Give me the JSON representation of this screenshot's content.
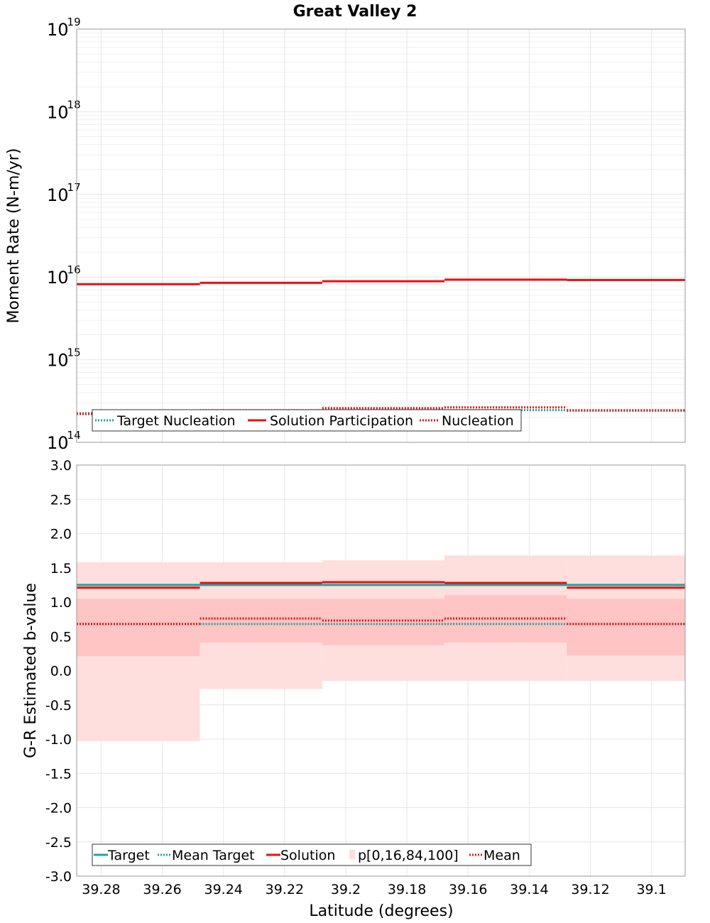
{
  "title": "Great Valley 2",
  "xlabel": "Latitude (degrees)",
  "colors": {
    "target": "#1aa6a0",
    "mean_target": "#1aa6a0",
    "solution": "#e81010",
    "mean": "#e81010",
    "band_outer": "#ffdede",
    "band_inner": "#ffc4c4",
    "grid": "#e6e6e6"
  },
  "chart_data": [
    {
      "type": "line",
      "ylabel": "Moment Rate (N-m/yr)",
      "yscale": "log",
      "ylim": [
        100000000000000.0,
        1e+19
      ],
      "xlim": [
        39.288,
        39.089
      ],
      "x_tick_values": [
        39.28,
        39.26,
        39.24,
        39.22,
        39.2,
        39.18,
        39.16,
        39.14,
        39.12,
        39.1
      ],
      "x_tick_labels_shown": false,
      "y_ticks": [
        {
          "base": "10",
          "exp": "14",
          "value": 100000000000000.0
        },
        {
          "base": "10",
          "exp": "15",
          "value": 1000000000000000.0
        },
        {
          "base": "10",
          "exp": "16",
          "value": 1e+16
        },
        {
          "base": "10",
          "exp": "17",
          "value": 1e+17
        },
        {
          "base": "10",
          "exp": "18",
          "value": 1e+18
        },
        {
          "base": "10",
          "exp": "19",
          "value": 1e+19
        }
      ],
      "bin_edges": [
        39.288,
        39.2477,
        39.2077,
        39.1677,
        39.1277,
        39.089
      ],
      "series": [
        {
          "name": "Target Nucleation",
          "style": "dotted",
          "color_key": "mean_target",
          "values": [
            230000000000000.0,
            245000000000000.0,
            255000000000000.0,
            250000000000000.0,
            245000000000000.0
          ]
        },
        {
          "name": "Solution Participation",
          "style": "solid",
          "color_key": "solution",
          "values": [
            8200000000000000.0,
            8500000000000000.0,
            8900000000000000.0,
            9300000000000000.0,
            9200000000000000.0
          ]
        },
        {
          "name": "Nucleation",
          "style": "dotted",
          "color_key": "mean",
          "values": [
            220000000000000.0,
            245000000000000.0,
            260000000000000.0,
            265000000000000.0,
            245000000000000.0
          ]
        }
      ],
      "legend": {
        "placement": "bottom-left"
      }
    },
    {
      "type": "line",
      "ylabel": "G-R Estimated b-value",
      "ylim": [
        -3.0,
        3.0
      ],
      "xlim": [
        39.288,
        39.089
      ],
      "y_ticks": [
        "3.0",
        "2.5",
        "2.0",
        "1.5",
        "1.0",
        "0.5",
        "0.0",
        "-0.5",
        "-1.0",
        "-1.5",
        "-2.0",
        "-2.5",
        "-3.0"
      ],
      "x_ticks": [
        "39.28",
        "39.26",
        "39.24",
        "39.22",
        "39.2",
        "39.18",
        "39.16",
        "39.14",
        "39.12",
        "39.1"
      ],
      "bin_edges": [
        39.288,
        39.2477,
        39.2077,
        39.1677,
        39.1277,
        39.089
      ],
      "bands": {
        "name": "p[0,16,84,100]",
        "p0": [
          -1.03,
          -0.27,
          -0.15,
          -0.15,
          -0.15
        ],
        "p16": [
          0.21,
          0.41,
          0.37,
          0.41,
          0.22
        ],
        "p84": [
          1.05,
          1.05,
          1.05,
          1.1,
          1.05
        ],
        "p100": [
          1.58,
          1.58,
          1.61,
          1.68,
          1.68
        ]
      },
      "series": [
        {
          "name": "Target",
          "style": "solid",
          "color_key": "target",
          "values": [
            1.25,
            1.25,
            1.25,
            1.25,
            1.25
          ]
        },
        {
          "name": "Mean Target",
          "style": "dotted",
          "color_key": "mean_target",
          "values": [
            0.68,
            0.68,
            0.68,
            0.68,
            0.68
          ]
        },
        {
          "name": "Solution",
          "style": "solid",
          "color_key": "solution",
          "values": [
            1.21,
            1.28,
            1.29,
            1.28,
            1.21
          ]
        },
        {
          "name": "Mean",
          "style": "dotted",
          "color_key": "mean",
          "values": [
            0.68,
            0.76,
            0.73,
            0.76,
            0.68
          ]
        }
      ],
      "legend": {
        "placement": "bottom-left"
      }
    }
  ]
}
